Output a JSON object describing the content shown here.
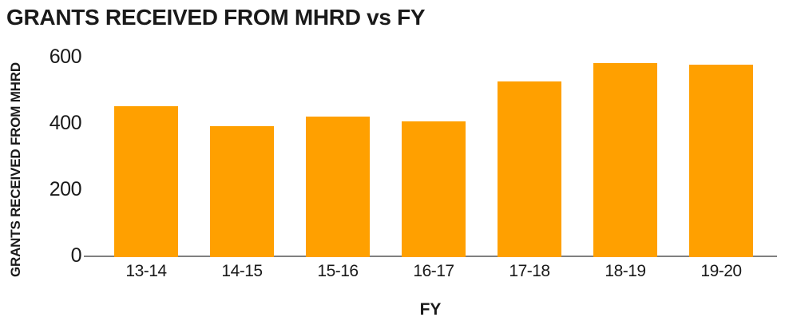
{
  "chart_data": {
    "type": "bar",
    "title": "GRANTS RECEIVED FROM MHRD vs FY",
    "xlabel": "FY",
    "ylabel": "GRANTS RECEIVED FROM MHRD",
    "categories": [
      "13-14",
      "14-15",
      "15-16",
      "16-17",
      "17-18",
      "18-19",
      "19-20"
    ],
    "values": [
      450,
      390,
      420,
      405,
      525,
      580,
      575
    ],
    "yticks": [
      0,
      200,
      400,
      600
    ],
    "ylim": [
      0,
      600
    ],
    "grid": false,
    "legend": false,
    "bar_color": "#FFA000",
    "axis_line_color": "#808080",
    "text_color": "#1a1a1a"
  }
}
